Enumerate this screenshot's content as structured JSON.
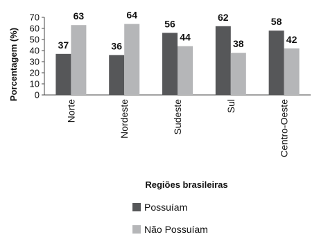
{
  "colors": {
    "possuiam": "#565759",
    "nao_possuiam": "#b5b6b8",
    "axis": "#444444"
  },
  "chart_data": {
    "type": "bar",
    "categories": [
      "Norte",
      "Nordeste",
      "Sudeste",
      "Sul",
      "Centro-Oeste"
    ],
    "series": [
      {
        "name": "Possuíam",
        "values": [
          37,
          36,
          56,
          62,
          58
        ]
      },
      {
        "name": "Não Possuíam",
        "values": [
          63,
          64,
          44,
          38,
          42
        ]
      }
    ],
    "xlabel": "Regiões brasileiras",
    "ylabel": "Porcentagem (%)",
    "ylim": [
      0,
      70
    ],
    "yticks": [
      0,
      10,
      20,
      30,
      40,
      50,
      60,
      70
    ],
    "grid": false,
    "legend_position": "bottom"
  }
}
